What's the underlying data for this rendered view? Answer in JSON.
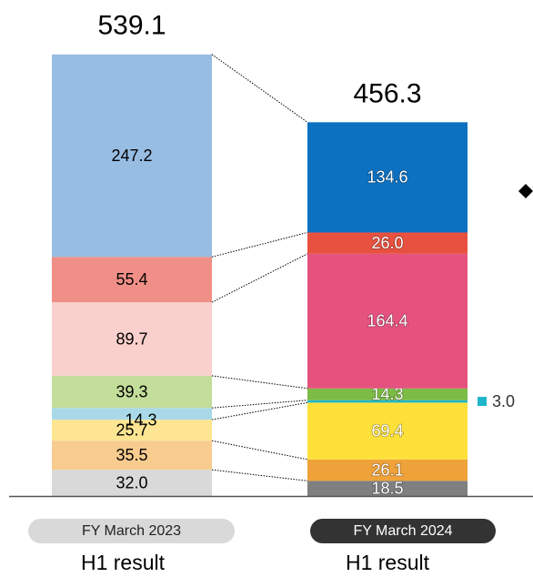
{
  "chart_data": {
    "type": "stacked_bar",
    "categories": [
      "FY March 2023",
      "FY March 2024"
    ],
    "category_sublabels": [
      "H1 result",
      "H1 result"
    ],
    "totals": [
      539.1,
      456.3
    ],
    "ylim": [
      0,
      600
    ],
    "series": [
      {
        "colors": [
          "#d9d9d9",
          "#7f7f7f"
        ],
        "values": [
          32.0,
          18.5
        ],
        "value_labels": [
          "32.0",
          "18.5"
        ]
      },
      {
        "colors": [
          "#f8cb8f",
          "#f0a23a"
        ],
        "values": [
          35.5,
          26.1
        ],
        "value_labels": [
          "35.5",
          "26.1"
        ]
      },
      {
        "colors": [
          "#fde593",
          "#fde13a"
        ],
        "values": [
          25.7,
          69.4
        ],
        "value_labels": [
          "25.7",
          "69.4"
        ]
      },
      {
        "colors": [
          "#a9d9e8",
          "#1fb6c9"
        ],
        "values": [
          14.3,
          3.0
        ],
        "value_labels": [
          "14.3",
          "3.0"
        ]
      },
      {
        "colors": [
          "#c3dd9a",
          "#7cbb45"
        ],
        "values": [
          39.3,
          14.3
        ],
        "value_labels": [
          "39.3",
          "14.3"
        ]
      },
      {
        "colors": [
          "#f9d0cc",
          "#e5527e"
        ],
        "values": [
          89.7,
          164.4
        ],
        "value_labels": [
          "89.7",
          "164.4"
        ]
      },
      {
        "colors": [
          "#f08f87",
          "#e8513f"
        ],
        "values": [
          55.4,
          26.0
        ],
        "value_labels": [
          "55.4",
          "26.0"
        ]
      },
      {
        "colors": [
          "#98bde3",
          "#0d71c1"
        ],
        "values": [
          247.2,
          134.6
        ],
        "value_labels": [
          "247.2",
          "134.6"
        ]
      }
    ]
  }
}
